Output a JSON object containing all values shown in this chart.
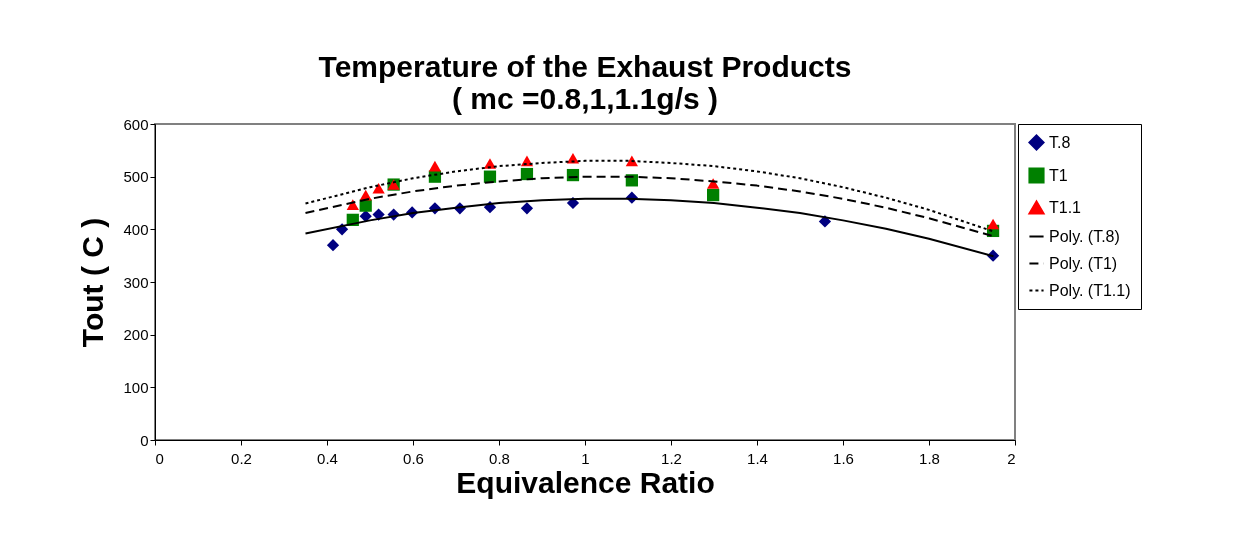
{
  "chart_data": {
    "type": "scatter",
    "title": "Temperature of the Exhaust Products",
    "subtitle": "( mc =0.8,1,1.1g/s )",
    "xlabel": "Equivalence Ratio",
    "ylabel": "Tout ( C )",
    "xlim": [
      0,
      2
    ],
    "xticks": [
      0,
      0.2,
      0.4,
      0.6,
      0.8,
      1,
      1.2,
      1.4,
      1.6,
      1.8,
      2
    ],
    "ylim": [
      0,
      600
    ],
    "yticks": [
      0,
      100,
      200,
      300,
      400,
      500,
      600
    ],
    "grid": false,
    "legend": "right",
    "series": [
      {
        "name": "T.8",
        "marker": "diamond",
        "color": "#000080",
        "x": [
          0.414,
          0.435,
          0.49,
          0.52,
          0.555,
          0.598,
          0.651,
          0.709,
          0.779,
          0.865,
          0.972,
          1.109,
          1.558,
          1.949
        ],
        "values": [
          370,
          400,
          425,
          428,
          428,
          432,
          440,
          440,
          442,
          440,
          450,
          460,
          415,
          350
        ]
      },
      {
        "name": "T1",
        "marker": "square",
        "color": "#008000",
        "x": [
          0.46,
          0.49,
          0.555,
          0.651,
          0.779,
          0.865,
          0.972,
          1.109,
          1.298,
          1.949
        ],
        "values": [
          418,
          445,
          485,
          500,
          500,
          505,
          503,
          493,
          465,
          397
        ]
      },
      {
        "name": "T1.1",
        "marker": "triangle",
        "color": "#ff0000",
        "x": [
          0.46,
          0.49,
          0.52,
          0.555,
          0.651,
          0.779,
          0.865,
          0.972,
          1.109,
          1.298,
          1.949
        ],
        "values": [
          447,
          465,
          478,
          485,
          520,
          525,
          530,
          535,
          530,
          487,
          410
        ]
      },
      {
        "name": "Poly. (T.8)",
        "type": "line",
        "line_style": "solid",
        "color": "#000000",
        "x": [
          0.35,
          0.5,
          0.6,
          0.7,
          0.8,
          0.9,
          1,
          1.1,
          1.2,
          1.3,
          1.4,
          1.5,
          1.6,
          1.7,
          1.8,
          1.95
        ],
        "values": [
          392,
          417,
          431,
          441,
          450,
          455,
          458,
          458,
          455,
          450,
          441,
          431,
          417,
          401,
          382,
          349
        ]
      },
      {
        "name": "Poly. (T1)",
        "type": "line",
        "line_style": "dashed",
        "color": "#000000",
        "x": [
          0.35,
          0.5,
          0.6,
          0.7,
          0.8,
          0.9,
          1,
          1.1,
          1.2,
          1.3,
          1.4,
          1.5,
          1.6,
          1.7,
          1.8,
          1.95
        ],
        "values": [
          431,
          458,
          472,
          483,
          491,
          497,
          500,
          500,
          497,
          491,
          483,
          472,
          458,
          441,
          421,
          387
        ]
      },
      {
        "name": "Poly. (T1.1)",
        "type": "line",
        "line_style": "dotted",
        "color": "#000000",
        "x": [
          0.35,
          0.5,
          0.6,
          0.7,
          0.8,
          0.9,
          1,
          1.1,
          1.2,
          1.3,
          1.4,
          1.5,
          1.6,
          1.7,
          1.8,
          1.95
        ],
        "values": [
          449,
          480,
          497,
          510,
          520,
          526,
          530,
          530,
          526,
          520,
          510,
          497,
          480,
          460,
          437,
          396
        ]
      }
    ]
  }
}
